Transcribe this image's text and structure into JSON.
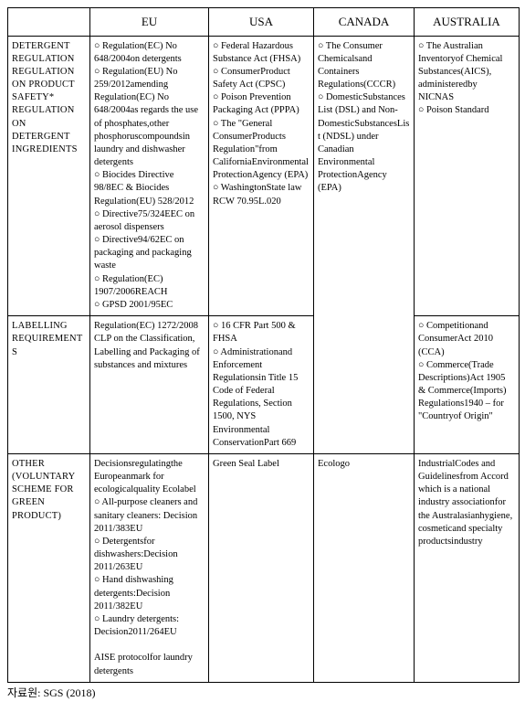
{
  "columns": {
    "blank": "",
    "eu": "EU",
    "usa": "USA",
    "canada": "CANADA",
    "australia": "AUSTRALIA"
  },
  "rows": {
    "r1_label": "DETERGENT REGULATION REGULATION ON PRODUCT SAFETY* REGULATION ON DETERGENT INGREDIENTS",
    "r1_eu": "○ Regulation(EC) No 648/2004on detergents\n○ Regulation(EU) No 259/2012amending Regulation(EC) No 648/2004as regards  the use of phosphates,other phosphoruscompoundsin laundry and dishwasher detergents\n○ Biocides Directive 98/8EC &  Biocides Regulation(EU) 528/2012\n○ Directive75/324EEC on aerosol dispensers\n○ Directive94/62EC on packaging and packaging waste\n○ Regulation(EC) 1907/2006REACH\n○ GPSD 2001/95EC",
    "r1_usa": "○ Federal Hazardous Substance Act (FHSA)\n○ ConsumerProduct Safety Act (CPSC)\n○ Poison Prevention Packaging Act (PPPA)\n○ The \"General ConsumerProducts Regulation\"from CaliforniaEnvironmental ProtectionAgency (EPA)\n○ WashingtonState law RCW 70.95L.020",
    "r1_canada": "○ The Consumer Chemicalsand Containers Regulations(CCCR)\n○ DomesticSubstances List (DSL) and Non-DomesticSubstancesList (NDSL)  under Canadian Environmental ProtectionAgency (EPA)",
    "r1_australia": "○ The Australian Inventoryof Chemical Substances(AICS), administeredby NICNAS\n○ Poison Standard",
    "r2_label": "LABELLING REQUIREMENTS",
    "r2_eu": "Regulation(EC) 1272/2008 CLP on the Classification, Labelling and  Packaging of substances and mixtures",
    "r2_usa": "○ 16 CFR Part 500 & FHSA\n○ Administrationand Enforcement Regulationsin Title 15 Code of Federal Regulations,  Section 1500, NYS Environmental ConservationPart 669",
    "r2_australia": "○ Competitionand ConsumerAct 2010 (CCA)\n○ Commerce(Trade Descriptions)Act 1905  & Commerce(Imports) Regulations1940 – for \"Countryof Origin\"",
    "r3_label": "OTHER (VOLUNTARY SCHEME FOR GREEN PRODUCT)",
    "r3_eu": "Decisionsregulatingthe Europeanmark for ecologicalquality Ecolabel\n○ All-purpose cleaners and sanitary cleaners: Decision 2011/383EU\n○ Detergentsfor dishwashers:Decision 2011/263EU\n○ Hand dishwashing detergents:Decision 2011/382EU\n○ Laundry detergents: Decision2011/264EU\n\nAISE protocolfor laundry detergents",
    "r3_usa": "Green Seal Label",
    "r3_canada": "Ecologo",
    "r3_australia": "IndustrialCodes  and Guidelinesfrom Accord which is a national industry associationfor the Australasianhygiene, cosmeticand specialty productsindustry"
  },
  "source": "자료원: SGS (2018)"
}
